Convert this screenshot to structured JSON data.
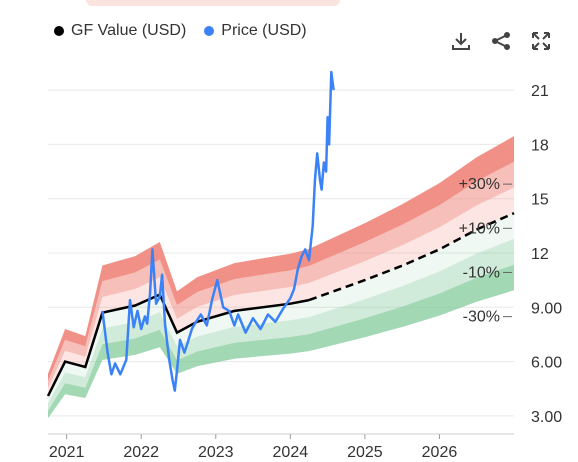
{
  "legend": {
    "gf_label": "GF Value (USD)",
    "price_label": "Price (USD)",
    "gf_color": "#000000",
    "price_color": "#3b82f6"
  },
  "toolbar": {
    "download_icon": "download-icon",
    "share_icon": "share-icon",
    "expand_icon": "expand-icon"
  },
  "chart_data": {
    "type": "line",
    "x_ticks": [
      "2021",
      "2022",
      "2023",
      "2024",
      "2025",
      "2026"
    ],
    "y_ticks": [
      "21",
      "18",
      "15",
      "12",
      "9.00",
      "6.00",
      "3.00"
    ],
    "y_tick_values": [
      21,
      18,
      15,
      12,
      9,
      6,
      3
    ],
    "ylim": [
      2,
      22
    ],
    "xlim": [
      2020.75,
      2027.0
    ],
    "band_labels": [
      "+30%",
      "+10%",
      "-10%",
      "-30%"
    ],
    "band_factors": [
      1.3,
      1.2,
      1.1,
      1.0,
      0.9,
      0.8,
      0.7
    ],
    "colors": {
      "upper": "#f08a80",
      "lower": "#7cc795",
      "gf": "#000000",
      "price": "#3b82f6"
    },
    "series": [
      {
        "name": "GF Value (USD)",
        "x": [
          2020.75,
          2020.98,
          2021.25,
          2021.48,
          2021.92,
          2022.25,
          2022.48,
          2022.75,
          2023.25,
          2024.0,
          2024.25,
          2025.0,
          2025.5,
          2026.0,
          2026.5,
          2027.0
        ],
        "y": [
          4.1,
          6.0,
          5.7,
          8.7,
          9.1,
          9.7,
          7.6,
          8.2,
          8.8,
          9.2,
          9.4,
          10.5,
          11.3,
          12.2,
          13.3,
          14.2
        ],
        "projected_from": 2024.25
      },
      {
        "name": "Price (USD)",
        "x": [
          2021.48,
          2021.55,
          2021.6,
          2021.65,
          2021.72,
          2021.8,
          2021.85,
          2021.9,
          2021.95,
          2022.0,
          2022.05,
          2022.08,
          2022.12,
          2022.15,
          2022.2,
          2022.25,
          2022.28,
          2022.32,
          2022.38,
          2022.42,
          2022.45,
          2022.48,
          2022.52,
          2022.58,
          2022.62,
          2022.68,
          2022.72,
          2022.8,
          2022.88,
          2022.95,
          2023.02,
          2023.1,
          2023.18,
          2023.25,
          2023.3,
          2023.4,
          2023.5,
          2023.6,
          2023.7,
          2023.8,
          2023.9,
          2024.0,
          2024.05,
          2024.1,
          2024.15,
          2024.2,
          2024.25,
          2024.3,
          2024.33,
          2024.36,
          2024.4,
          2024.42,
          2024.45,
          2024.48,
          2024.5,
          2024.52,
          2024.55,
          2024.58
        ],
        "y": [
          8.8,
          6.5,
          5.3,
          5.9,
          5.3,
          6.1,
          9.4,
          7.9,
          8.8,
          7.8,
          8.5,
          8.1,
          9.8,
          12.2,
          9.2,
          9.6,
          10.8,
          8.0,
          6.0,
          5.0,
          4.4,
          5.5,
          7.2,
          6.5,
          7.0,
          7.8,
          8.1,
          8.6,
          8.0,
          9.4,
          10.5,
          9.0,
          8.8,
          8.0,
          8.6,
          7.6,
          8.4,
          7.8,
          8.6,
          8.2,
          8.9,
          9.5,
          10.0,
          11.1,
          11.8,
          12.2,
          11.6,
          13.5,
          16.0,
          17.5,
          16.0,
          15.5,
          17.0,
          16.5,
          19.5,
          18.0,
          22.0,
          21.0
        ]
      }
    ]
  }
}
